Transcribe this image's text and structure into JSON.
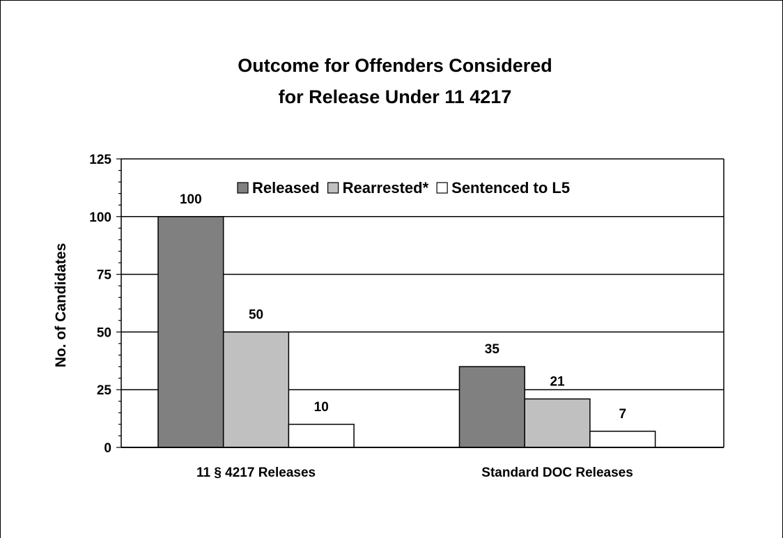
{
  "chart_data": {
    "type": "bar",
    "title": [
      "Outcome for Offenders Considered",
      "for Release Under 11 4217"
    ],
    "ylabel": "No. of Candidates",
    "xlabel": "",
    "ylim": [
      0,
      125
    ],
    "yticks": [
      "0",
      "25",
      "50",
      "75",
      "100",
      "125"
    ],
    "categories": [
      "11 § 4217 Releases",
      "Standard DOC Releases"
    ],
    "series": [
      {
        "name": "Released",
        "values": [
          100,
          35
        ],
        "color": "#808080"
      },
      {
        "name": "Rearrested*",
        "values": [
          50,
          21
        ],
        "color": "#c0c0c0"
      },
      {
        "name": "Sentenced to L5",
        "values": [
          10,
          7
        ],
        "color": "#ffffff"
      }
    ],
    "data_labels": [
      [
        "100",
        "50",
        "10"
      ],
      [
        "35",
        "21",
        "7"
      ]
    ],
    "grid": true,
    "legend": "top"
  }
}
